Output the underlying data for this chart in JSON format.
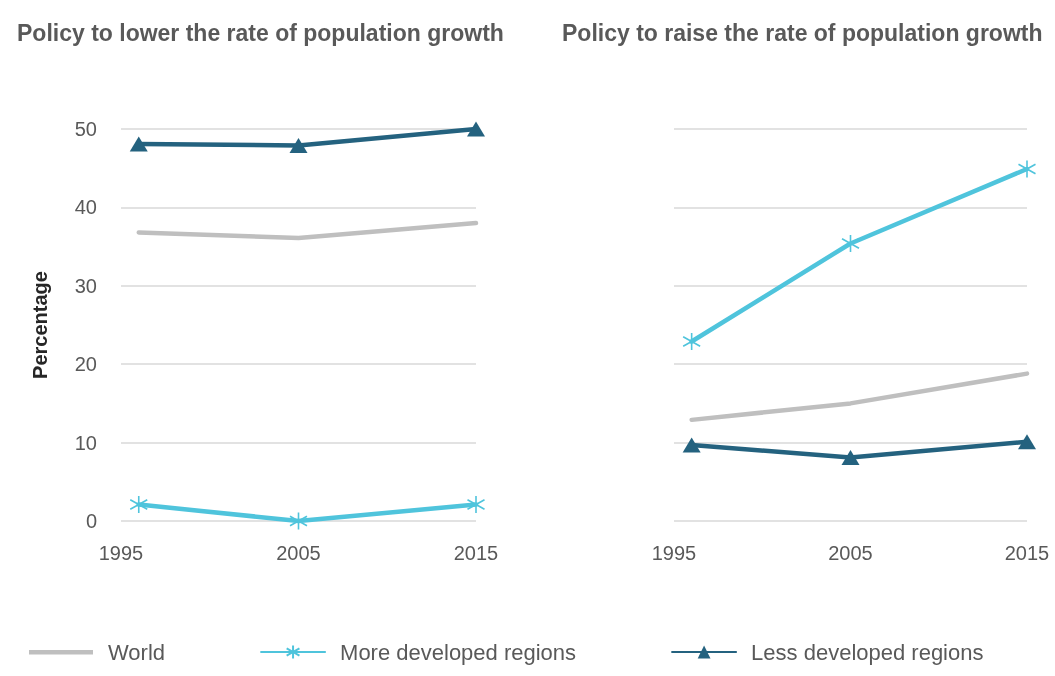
{
  "chart_data": [
    {
      "type": "line",
      "title": "Policy to lower the rate of population growth",
      "ylabel": "Percentage",
      "x": [
        1996,
        2005,
        2015
      ],
      "xlim": [
        1995,
        2015
      ],
      "xticks": [
        1995,
        2005,
        2015
      ],
      "ylim": [
        0,
        50
      ],
      "yticks": [
        0,
        10,
        20,
        30,
        40,
        50
      ],
      "grid": "y",
      "legend": "bottom",
      "line_style": "solid",
      "series": [
        {
          "name": "World",
          "color": "#bfbfbf",
          "marker": "none",
          "values": [
            36.8,
            36.1,
            38.0
          ]
        },
        {
          "name": "More developed regions",
          "color": "#4fc4dc",
          "marker": "cross",
          "values": [
            2.1,
            0,
            2.1
          ]
        },
        {
          "name": "Less developed regions",
          "color": "#24627f",
          "marker": "triangle",
          "values": [
            48.1,
            47.9,
            50.0
          ]
        }
      ]
    },
    {
      "type": "line",
      "title": "Policy to raise the rate of population growth",
      "x": [
        1996,
        2005,
        2015
      ],
      "xlim": [
        1995,
        2015
      ],
      "xticks": [
        1995,
        2005,
        2015
      ],
      "ylim": [
        0,
        50
      ],
      "yticks": [
        0,
        10,
        20,
        30,
        40,
        50
      ],
      "grid": "y",
      "tick_labels": "x",
      "line_style": "solid",
      "series": [
        {
          "color": "#bfbfbf",
          "marker": "none",
          "values": [
            12.9,
            15.0,
            18.8
          ]
        },
        {
          "color": "#4fc4dc",
          "marker": "cross",
          "values": [
            22.9,
            35.4,
            44.9
          ]
        },
        {
          "color": "#24627f",
          "marker": "triangle",
          "values": [
            9.7,
            8.1,
            10.1
          ]
        }
      ]
    }
  ]
}
